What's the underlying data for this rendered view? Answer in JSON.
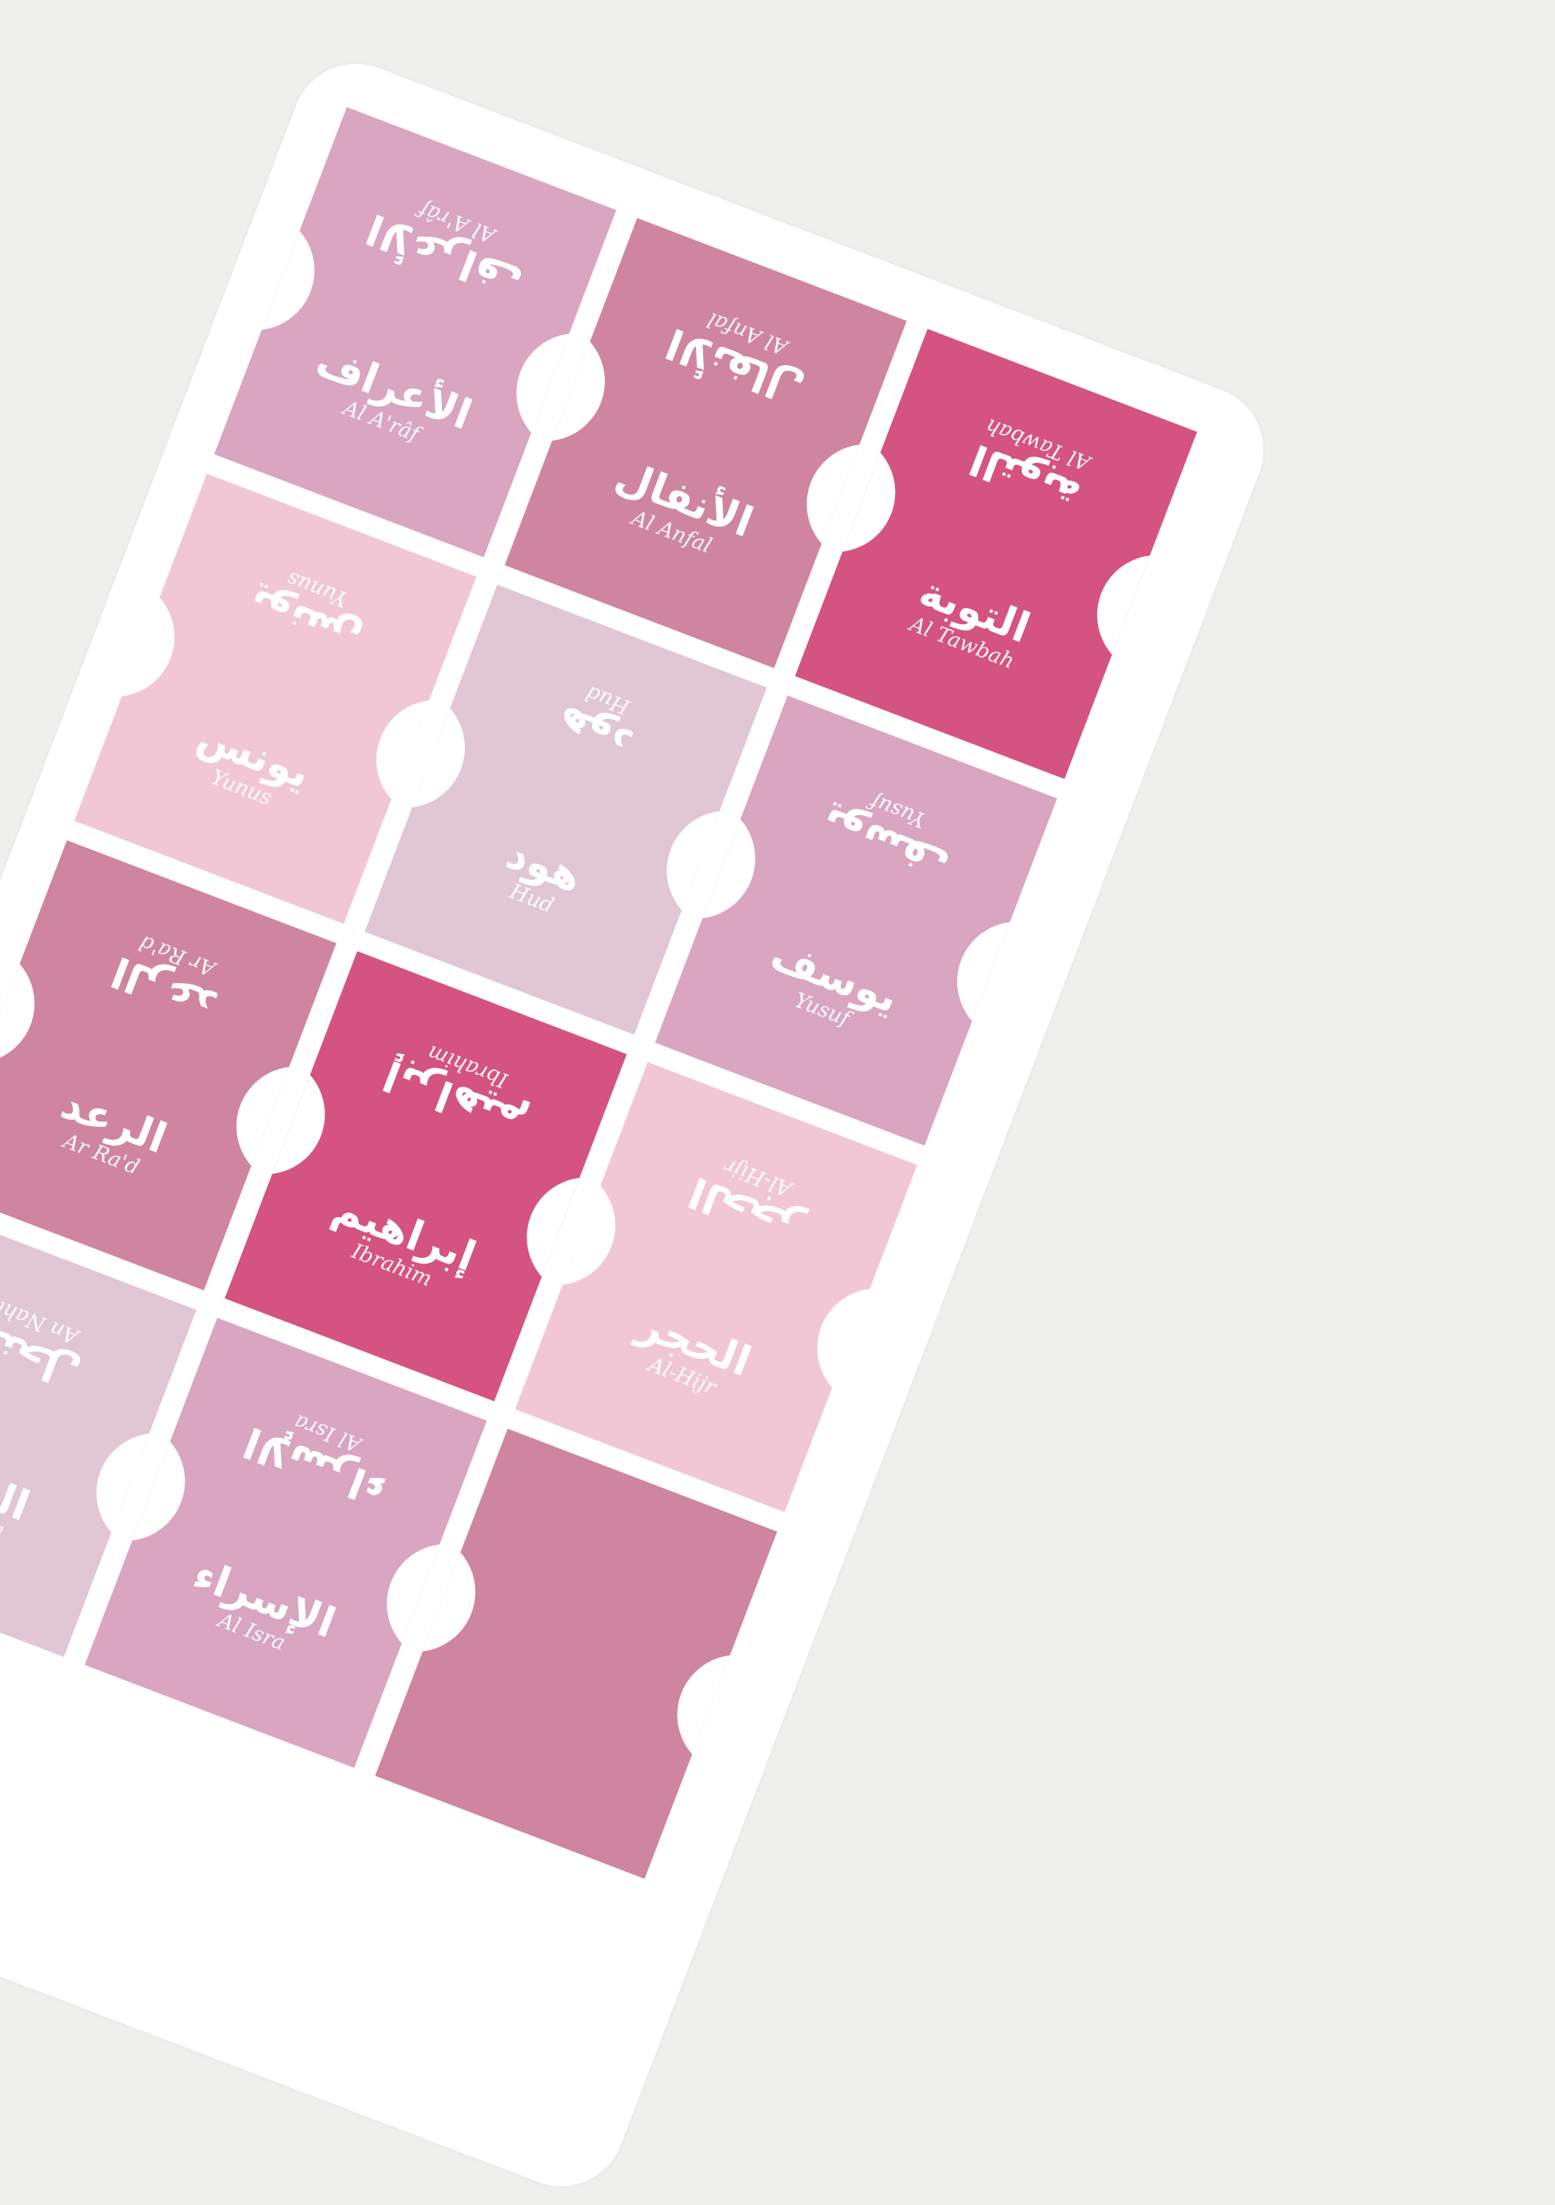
{
  "tabs": [
    {
      "arabic": "الأعراف",
      "name": "Al A'râf",
      "color": "#d9a5c1"
    },
    {
      "arabic": "الأنفال",
      "name": "Al Anfal",
      "color": "#cf85a0"
    },
    {
      "arabic": "التوبة",
      "name": "Al Tawbah",
      "color": "#d55380"
    },
    {
      "arabic": "يونس",
      "name": "Yunus",
      "color": "#f1c7d5"
    },
    {
      "arabic": "هود",
      "name": "Hud",
      "color": "#e1c6d4"
    },
    {
      "arabic": "يوسف",
      "name": "Yusuf",
      "color": "#d9a5c1"
    },
    {
      "arabic": "الرعد",
      "name": "Ar Ra'd",
      "color": "#cf85a0"
    },
    {
      "arabic": "إبراهيم",
      "name": "Ibrahim",
      "color": "#d55380"
    },
    {
      "arabic": "الحجر",
      "name": "Al-Hijr",
      "color": "#f1c7d5"
    },
    {
      "arabic": "النحل",
      "name": "An Nahl",
      "color": "#e1c6d4"
    },
    {
      "arabic": "الإسراء",
      "name": "Al Isra",
      "color": "#d9a5c1"
    },
    {
      "arabic": "",
      "name": "",
      "color": "#cf85a0"
    }
  ]
}
